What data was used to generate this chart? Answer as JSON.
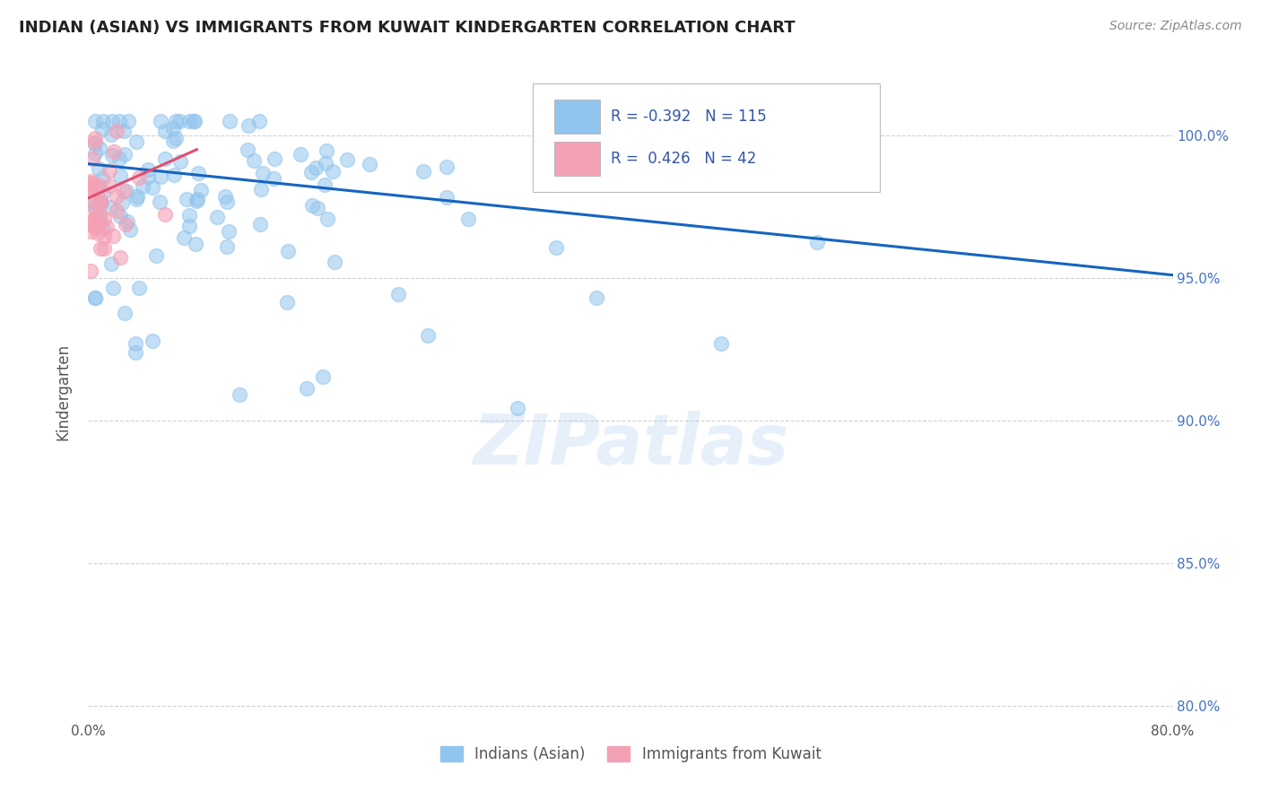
{
  "title": "INDIAN (ASIAN) VS IMMIGRANTS FROM KUWAIT KINDERGARTEN CORRELATION CHART",
  "source_text": "Source: ZipAtlas.com",
  "ylabel": "Kindergarten",
  "legend_label_1": "Indians (Asian)",
  "legend_label_2": "Immigrants from Kuwait",
  "r1": -0.392,
  "n1": 115,
  "r2": 0.426,
  "n2": 42,
  "color_blue": "#92C5ED",
  "color_pink": "#F4A0B5",
  "color_line_blue": "#1565C0",
  "color_line_pink": "#E05070",
  "xlim": [
    0.0,
    0.8
  ],
  "ylim": [
    0.795,
    1.025
  ],
  "yticks": [
    0.8,
    0.85,
    0.9,
    0.95,
    1.0
  ],
  "ytick_labels": [
    "80.0%",
    "85.0%",
    "90.0%",
    "95.0%",
    "100.0%"
  ],
  "xtick_vals": [
    0.0,
    0.1,
    0.2,
    0.3,
    0.4,
    0.5,
    0.6,
    0.7,
    0.8
  ],
  "xtick_labels": [
    "0.0%",
    "",
    "",
    "",
    "",
    "",
    "",
    "",
    "80.0%"
  ],
  "background_color": "#FFFFFF",
  "grid_color": "#CCCCCC",
  "title_color": "#222222",
  "axis_label_color": "#555555",
  "watermark_text": "ZIPatlas",
  "blue_line_x0": 0.0,
  "blue_line_y0": 0.99,
  "blue_line_x1": 0.8,
  "blue_line_y1": 0.951,
  "pink_line_x0": 0.0,
  "pink_line_y0": 0.978,
  "pink_line_x1": 0.08,
  "pink_line_y1": 0.995
}
